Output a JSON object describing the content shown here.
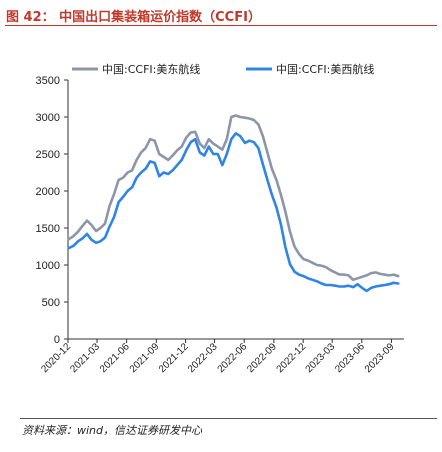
{
  "figure": {
    "title": "图 42： 中国出口集装箱运价指数（CCFI）",
    "source": "资料来源：wind，信达证券研发中心"
  },
  "chart_data": {
    "type": "line",
    "title": "",
    "xlabel": "",
    "ylabel": "",
    "ylim": [
      0,
      3500
    ],
    "yticks": [
      0,
      500,
      1000,
      1500,
      2000,
      2500,
      3000,
      3500
    ],
    "xticks": [
      "2020-12",
      "2021-03",
      "2021-06",
      "2021-09",
      "2021-12",
      "2022-03",
      "2022-06",
      "2022-09",
      "2022-12",
      "2023-03",
      "2023-06",
      "2023-09"
    ],
    "legend_position": "top",
    "x": [
      "2020-12-04",
      "2020-12-18",
      "2021-01-01",
      "2021-01-15",
      "2021-01-29",
      "2021-02-12",
      "2021-02-26",
      "2021-03-12",
      "2021-03-26",
      "2021-04-09",
      "2021-04-23",
      "2021-05-07",
      "2021-05-21",
      "2021-06-04",
      "2021-06-18",
      "2021-07-02",
      "2021-07-16",
      "2021-07-30",
      "2021-08-13",
      "2021-08-27",
      "2021-09-10",
      "2021-09-24",
      "2021-10-08",
      "2021-10-22",
      "2021-11-05",
      "2021-11-19",
      "2021-12-03",
      "2021-12-17",
      "2021-12-31",
      "2022-01-14",
      "2022-01-28",
      "2022-02-11",
      "2022-02-25",
      "2022-03-11",
      "2022-03-25",
      "2022-04-08",
      "2022-04-22",
      "2022-05-06",
      "2022-05-20",
      "2022-06-03",
      "2022-06-17",
      "2022-07-01",
      "2022-07-15",
      "2022-07-29",
      "2022-08-12",
      "2022-08-26",
      "2022-09-09",
      "2022-09-23",
      "2022-10-07",
      "2022-10-21",
      "2022-11-04",
      "2022-11-18",
      "2022-12-02",
      "2022-12-16",
      "2022-12-30",
      "2023-01-13",
      "2023-01-27",
      "2023-02-10",
      "2023-02-24",
      "2023-03-10",
      "2023-03-24",
      "2023-04-07",
      "2023-04-21",
      "2023-05-05",
      "2023-05-19",
      "2023-06-02",
      "2023-06-16",
      "2023-06-30",
      "2023-07-14",
      "2023-07-28",
      "2023-08-11",
      "2023-08-25",
      "2023-09-08",
      "2023-09-22"
    ],
    "series": [
      {
        "name": "中国:CCFI:美东航线",
        "color": "#8c96a8",
        "values": [
          1350,
          1390,
          1450,
          1530,
          1600,
          1540,
          1460,
          1500,
          1560,
          1800,
          1960,
          2150,
          2180,
          2250,
          2280,
          2420,
          2520,
          2580,
          2700,
          2680,
          2500,
          2460,
          2420,
          2480,
          2550,
          2600,
          2720,
          2790,
          2800,
          2640,
          2580,
          2700,
          2640,
          2600,
          2560,
          2700,
          3000,
          3020,
          3000,
          2990,
          2980,
          2960,
          2900,
          2740,
          2520,
          2300,
          2150,
          1950,
          1720,
          1450,
          1250,
          1150,
          1080,
          1060,
          1030,
          1000,
          990,
          970,
          930,
          900,
          870,
          870,
          860,
          800,
          820,
          840,
          860,
          890,
          900,
          880,
          870,
          860,
          870,
          850
        ]
      },
      {
        "name": "中国:CCFI:美西航线",
        "color": "#2f84e6",
        "values": [
          1230,
          1260,
          1320,
          1360,
          1420,
          1340,
          1300,
          1320,
          1370,
          1520,
          1650,
          1850,
          1920,
          2000,
          2050,
          2180,
          2250,
          2300,
          2400,
          2380,
          2200,
          2250,
          2230,
          2280,
          2350,
          2420,
          2550,
          2660,
          2700,
          2520,
          2480,
          2600,
          2500,
          2500,
          2350,
          2500,
          2700,
          2780,
          2740,
          2650,
          2680,
          2660,
          2580,
          2360,
          2150,
          1950,
          1780,
          1550,
          1240,
          1010,
          910,
          870,
          850,
          820,
          800,
          780,
          750,
          730,
          730,
          720,
          710,
          710,
          720,
          700,
          740,
          690,
          650,
          690,
          710,
          720,
          730,
          740,
          760,
          750
        ]
      }
    ]
  }
}
